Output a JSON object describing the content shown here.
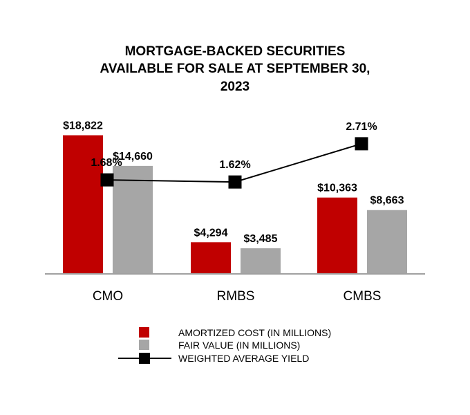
{
  "chart_data": {
    "type": "bar",
    "title_lines": [
      "MORTGAGE-BACKED SECURITIES",
      "AVAILABLE FOR SALE AT SEPTEMBER 30,",
      "2023"
    ],
    "categories": [
      "CMO",
      "RMBS",
      "CMBS"
    ],
    "ylim": [
      0,
      20000
    ],
    "series": [
      {
        "name": "AMORTIZED COST (IN MILLIONS)",
        "color": "#c00000",
        "values": [
          18822,
          4294,
          10363
        ],
        "labels": [
          "$18,822",
          "$4,294",
          "$10,363"
        ]
      },
      {
        "name": "FAIR VALUE (IN MILLIONS)",
        "color": "#a6a6a6",
        "values": [
          14660,
          3485,
          8663
        ],
        "labels": [
          "$14,660",
          "$3,485",
          "$8,663"
        ]
      }
    ],
    "line_series": {
      "name": "WEIGHTED AVERAGE YIELD",
      "color": "#000000",
      "values": [
        1.68,
        1.62,
        2.71
      ],
      "labels": [
        "1.68%",
        "1.62%",
        "2.71%"
      ],
      "ylim": [
        -1.0,
        3.2
      ]
    },
    "legend": [
      {
        "label": "AMORTIZED COST (IN MILLIONS)",
        "kind": "bar",
        "color": "#c00000"
      },
      {
        "label": "FAIR VALUE (IN MILLIONS)",
        "kind": "bar",
        "color": "#a6a6a6"
      },
      {
        "label": "WEIGHTED AVERAGE YIELD",
        "kind": "line",
        "color": "#000000"
      }
    ],
    "legend_position": "bottom-center",
    "grid": false
  }
}
